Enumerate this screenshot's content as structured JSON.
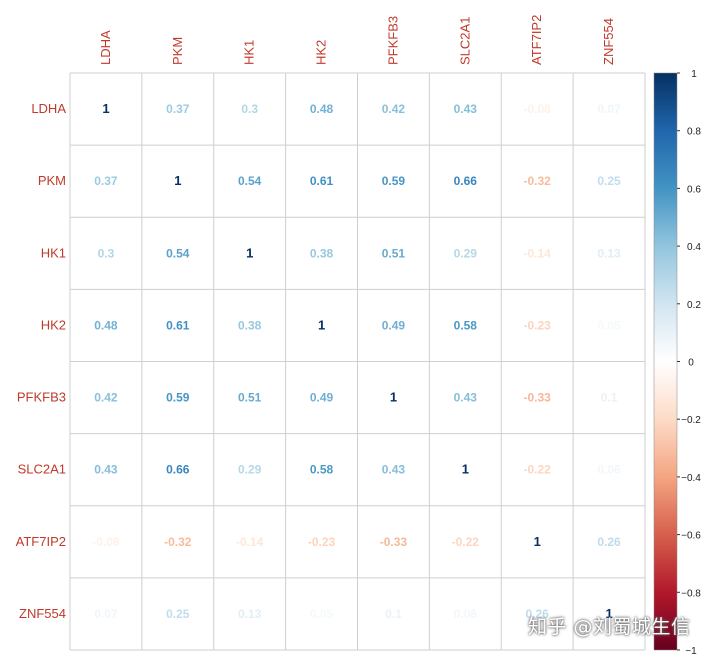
{
  "chart_data": {
    "type": "heatmap",
    "title": "",
    "variables": [
      "LDHA",
      "PKM",
      "HK1",
      "HK2",
      "PFKFB3",
      "SLC2A1",
      "ATF7IP2",
      "ZNF554"
    ],
    "matrix": [
      [
        1,
        0.37,
        0.3,
        0.48,
        0.42,
        0.43,
        -0.08,
        0.07
      ],
      [
        0.37,
        1,
        0.54,
        0.61,
        0.59,
        0.66,
        -0.32,
        0.25
      ],
      [
        0.3,
        0.54,
        1,
        0.38,
        0.51,
        0.29,
        -0.14,
        0.13
      ],
      [
        0.48,
        0.61,
        0.38,
        1,
        0.49,
        0.58,
        -0.23,
        0.05
      ],
      [
        0.42,
        0.59,
        0.51,
        0.49,
        1,
        0.43,
        -0.33,
        0.1
      ],
      [
        0.43,
        0.66,
        0.29,
        0.58,
        0.43,
        1,
        -0.22,
        0.06
      ],
      [
        -0.08,
        -0.32,
        -0.14,
        -0.23,
        -0.33,
        -0.22,
        1,
        0.26
      ],
      [
        0.07,
        0.25,
        0.13,
        0.05,
        0.1,
        0.06,
        0.26,
        1
      ]
    ],
    "colorbar": {
      "min": -1,
      "max": 1,
      "ticks": [
        1,
        0.8,
        0.6,
        0.4,
        0.2,
        0,
        -0.2,
        -0.4,
        -0.6,
        -0.8,
        -1
      ],
      "tick_labels": [
        "1",
        "0.8",
        "0.6",
        "0.4",
        "0.2",
        "0",
        "−0.2",
        "−0.4",
        "−0.6",
        "−0.8",
        "−1"
      ],
      "colors": [
        "#67001F",
        "#B2182B",
        "#D6604D",
        "#F4A582",
        "#FDDBC7",
        "#FFFFFF",
        "#D1E5F0",
        "#92C5DE",
        "#4393C3",
        "#2166AC",
        "#053061"
      ]
    },
    "label_color": "#C0392B",
    "grid": true
  },
  "watermark": "知乎 @刘蜀城生信"
}
